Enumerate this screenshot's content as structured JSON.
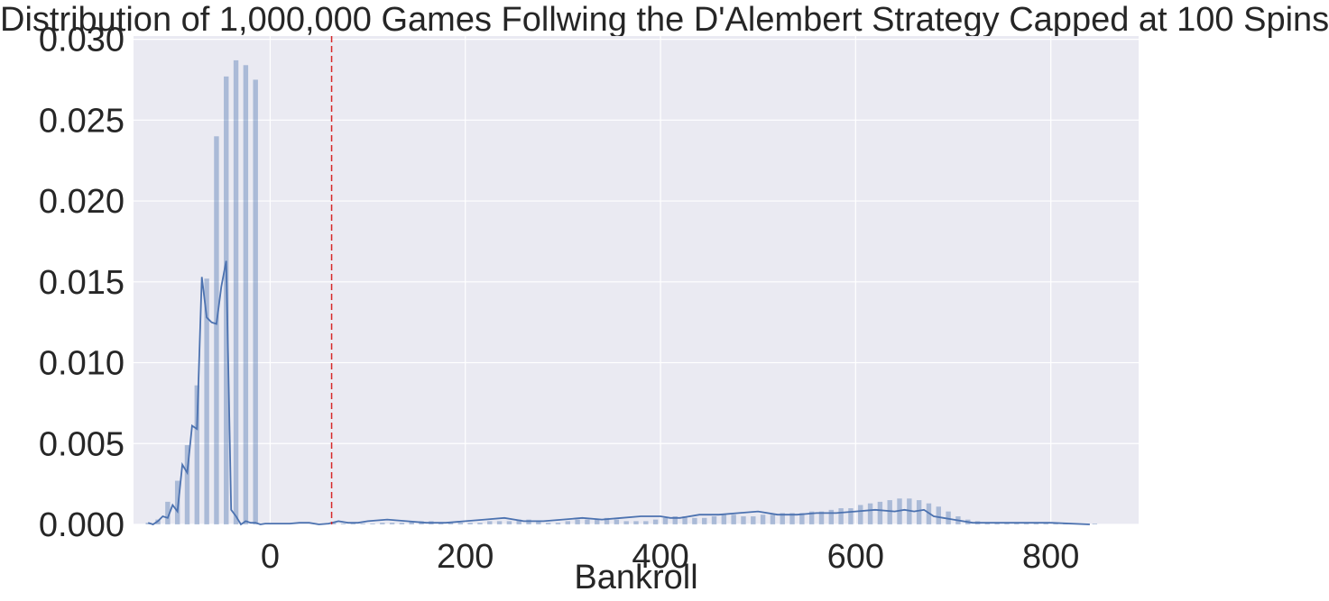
{
  "chart_data": {
    "type": "bar",
    "title": "Distribution of 1,000,000 Games Follwing the D'Alembert Strategy Capped at 100 Spins",
    "xlabel": "Bankroll",
    "ylabel": "",
    "xlim": [
      -140,
      890
    ],
    "ylim": [
      0,
      0.0302
    ],
    "xticks": [
      0,
      200,
      400,
      600,
      800
    ],
    "xtick_labels": [
      "0",
      "200",
      "400",
      "600",
      "800"
    ],
    "yticks": [
      0,
      0.005,
      0.01,
      0.015,
      0.02,
      0.025,
      0.03
    ],
    "ytick_labels": [
      "0.000",
      "0.005",
      "0.010",
      "0.015",
      "0.020",
      "0.025",
      "0.030"
    ],
    "grid": true,
    "histogram": {
      "name": "histogram",
      "bin_centers": [
        -125,
        -115,
        -105,
        -95,
        -85,
        -75,
        -65,
        -55,
        -45,
        -35,
        -25,
        -15,
        65,
        75,
        85,
        95,
        105,
        115,
        125,
        135,
        145,
        155,
        165,
        175,
        185,
        195,
        205,
        215,
        225,
        235,
        245,
        255,
        265,
        275,
        285,
        295,
        305,
        315,
        325,
        335,
        345,
        355,
        365,
        375,
        385,
        395,
        405,
        415,
        425,
        435,
        445,
        455,
        465,
        475,
        485,
        495,
        505,
        515,
        525,
        535,
        545,
        555,
        565,
        575,
        585,
        595,
        605,
        615,
        625,
        635,
        645,
        655,
        665,
        675,
        685,
        695,
        705,
        715,
        725,
        735,
        745,
        755,
        765,
        775,
        785,
        795,
        805,
        815,
        825,
        835,
        845
      ],
      "values": [
        0.0001,
        0.0003,
        0.0014,
        0.0027,
        0.0049,
        0.0086,
        0.0152,
        0.024,
        0.0277,
        0.0287,
        0.0284,
        0.0275,
        0.0001,
        5e-05,
        5e-05,
        5e-05,
        5e-05,
        0.0001,
        0.0001,
        0.0001,
        0.0002,
        0.0002,
        0.0002,
        0.0001,
        0.0001,
        0.0001,
        0.0001,
        0.0001,
        0.0002,
        0.0002,
        0.0002,
        0.0003,
        0.0003,
        0.0002,
        0.0001,
        0.0001,
        0.0002,
        0.0003,
        0.0003,
        0.0003,
        0.0004,
        0.0003,
        0.0002,
        0.0002,
        0.0002,
        0.0003,
        0.0004,
        0.0005,
        0.0005,
        0.0004,
        0.0004,
        0.0005,
        0.0006,
        0.0006,
        0.0005,
        0.0005,
        0.0006,
        0.0006,
        0.0007,
        0.0007,
        0.0007,
        0.0008,
        0.0008,
        0.0009,
        0.001,
        0.001,
        0.0012,
        0.0013,
        0.0014,
        0.0015,
        0.0016,
        0.0016,
        0.0015,
        0.0013,
        0.0011,
        0.0008,
        0.0005,
        0.0003,
        0.0002,
        0.0001,
        0.0001,
        5e-05,
        5e-05,
        5e-05,
        5e-05,
        5e-05,
        5e-05,
        5e-05,
        5e-05,
        5e-05,
        5e-05
      ]
    },
    "kde": {
      "name": "kde",
      "x": [
        -130,
        -120,
        -115,
        -110,
        -105,
        -100,
        -95,
        -90,
        -85,
        -80,
        -75,
        -70,
        -65,
        -60,
        -55,
        -50,
        -45,
        -40,
        -35,
        -30,
        -25,
        -20,
        -15,
        -10,
        -5,
        0,
        10,
        20,
        30,
        40,
        50,
        60,
        70,
        80,
        90,
        100,
        120,
        140,
        160,
        180,
        200,
        220,
        240,
        260,
        280,
        300,
        320,
        340,
        360,
        380,
        400,
        410,
        420,
        440,
        460,
        480,
        500,
        520,
        540,
        560,
        580,
        600,
        620,
        640,
        650,
        660,
        670,
        680,
        690,
        700,
        720,
        760,
        800,
        840
      ],
      "y": [
        0.0001,
        0.0,
        0.0002,
        0.0005,
        0.0004,
        0.0012,
        0.0008,
        0.0037,
        0.0032,
        0.0061,
        0.0059,
        0.0153,
        0.0128,
        0.0125,
        0.0124,
        0.0147,
        0.0163,
        0.0009,
        0.0005,
        0.0,
        0.0002,
        0.0001,
        0.0001,
        0.0,
        5e-05,
        5e-05,
        5e-05,
        5e-05,
        0.0001,
        0.0001,
        0.0,
        5e-05,
        0.0002,
        0.0001,
        0.0001,
        0.0002,
        0.0003,
        0.0002,
        0.0001,
        0.0001,
        0.0002,
        0.0003,
        0.0004,
        0.0002,
        0.0002,
        0.0003,
        0.0004,
        0.0003,
        0.0004,
        0.0005,
        0.0005,
        0.0004,
        0.0004,
        0.0006,
        0.0006,
        0.0007,
        0.0008,
        0.0006,
        0.0006,
        0.0007,
        0.0007,
        0.0008,
        0.0009,
        0.0008,
        0.0009,
        0.0008,
        0.0009,
        0.0005,
        0.0004,
        0.0003,
        0.0001,
        0.0001,
        0.0001,
        0.0
      ],
      "x_fixed": [
        -125,
        -120,
        -115,
        -110,
        -105,
        -100,
        -95,
        -90,
        -85,
        -80,
        -75,
        -70,
        -65,
        -60,
        -55,
        -50,
        -45,
        -40,
        -35,
        -30,
        -25,
        -20,
        -15,
        -10,
        -5,
        0,
        10,
        20,
        30,
        40,
        50,
        60,
        70,
        80,
        90,
        100,
        120,
        140,
        160,
        180,
        200,
        220,
        240,
        260,
        280,
        300,
        320,
        340,
        360,
        380,
        400,
        410,
        420,
        440,
        460,
        480,
        500,
        520,
        540,
        560,
        580,
        600,
        620,
        640,
        650,
        660,
        670,
        680,
        690,
        700,
        720,
        760,
        800,
        840
      ]
    },
    "mean_line": {
      "x": 63
    },
    "colors": {
      "background": "#eaeaf2",
      "grid": "#ffffff",
      "bar": "#4c72b0",
      "line": "#4c72b0",
      "mean_line": "#d62728",
      "text": "#262626"
    }
  }
}
